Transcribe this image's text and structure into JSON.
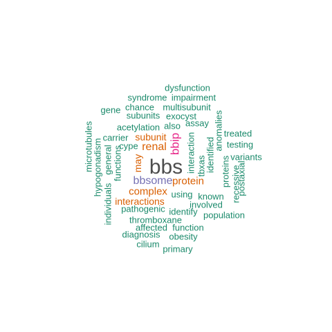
{
  "colors": {
    "gray": "#4d4d4d",
    "magenta": "#e7298a",
    "purple": "#7570b3",
    "orange": "#d95f02",
    "green": "#1b8a6b"
  },
  "words": {
    "bbs": "bbs",
    "bbip": "bbip",
    "bbsome": "bbsome",
    "protein": "protein",
    "renal": "renal",
    "may": "may",
    "complex": "complex",
    "interactions": "interactions",
    "subunit": "subunit",
    "dysfunction": "dysfunction",
    "syndrome": "syndrome",
    "impairment": "impairment",
    "gene": "gene",
    "chance": "chance",
    "multisubunit": "multisubunit",
    "subunits": "subunits",
    "exocyst": "exocyst",
    "assay": "assay",
    "acetylation": "acetylation",
    "also": "also",
    "treated": "treated",
    "carrier": "carrier",
    "testing": "testing",
    "cype": "cype",
    "variants": "variants",
    "using": "using",
    "known": "known",
    "involved": "involved",
    "pathogenic": "pathogenic",
    "identify": "identify",
    "population": "population",
    "thromboxane": "thromboxane",
    "affected": "affected",
    "function": "function",
    "diagnosis": "diagnosis",
    "obesity": "obesity",
    "cilium": "cilium",
    "primary": "primary",
    "microtubules": "microtubules",
    "hypogonadism": "hypogonadism",
    "general": "general",
    "functions": "functions",
    "individuals": "individuals",
    "interaction": "interaction",
    "tbxas": "tbxas",
    "identified": "identified",
    "anomalies": "anomalies",
    "proteins": "proteins",
    "recessive": "recessive",
    "postaxial": "postaxial"
  }
}
